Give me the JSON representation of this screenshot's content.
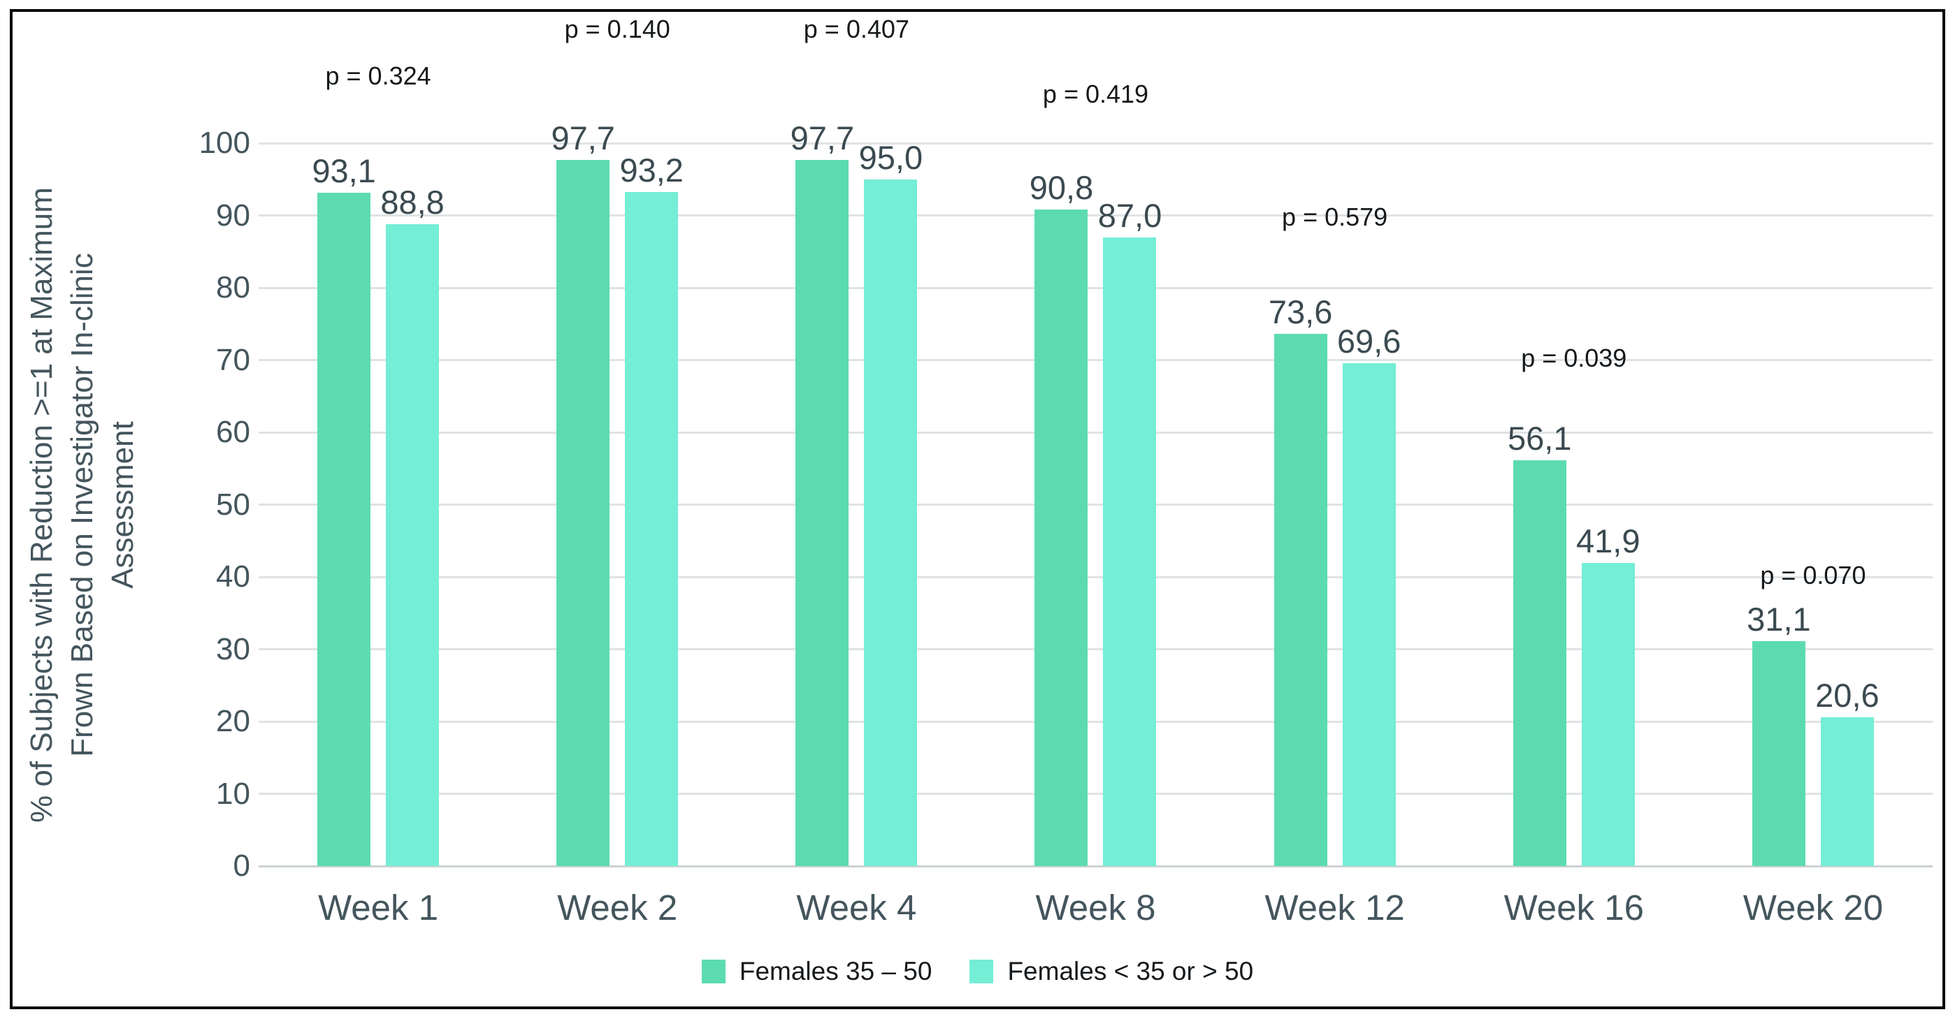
{
  "figure": {
    "background": "#ffffff",
    "border_color": "#0a0a0a"
  },
  "chart_data": {
    "type": "bar",
    "title": "",
    "ylabel_lines": [
      "% of Subjects with Reduction >=1 at Maximum",
      "Frown Based on Investigator In-clinic",
      "Assessment"
    ],
    "xlabel": "",
    "ylim": [
      0,
      100
    ],
    "grid": true,
    "gridline_color": "#dfe3e5",
    "y_ticks": [
      "0",
      "10",
      "20",
      "30",
      "40",
      "50",
      "60",
      "70",
      "80",
      "90",
      "100"
    ],
    "categories": [
      "Week 1",
      "Week 2",
      "Week 4",
      "Week 8",
      "Week 12",
      "Week 16",
      "Week 20"
    ],
    "series": [
      {
        "name": "Females 35 – 50",
        "color": "#5cdbb1",
        "values": [
          93.1,
          97.7,
          97.7,
          90.8,
          73.6,
          56.1,
          31.1
        ],
        "value_labels": [
          "93,1",
          "97,7",
          "97,7",
          "90,8",
          "73,6",
          "56,1",
          "31,1"
        ]
      },
      {
        "name": "Females < 35 or > 50",
        "color": "#74eed5",
        "values": [
          88.8,
          93.2,
          95.0,
          87.0,
          69.6,
          41.9,
          20.6
        ],
        "value_labels": [
          "88,8",
          "93,2",
          "95,0",
          "87,0",
          "69,6",
          "41,9",
          "20,6"
        ]
      }
    ],
    "p_values": [
      {
        "text": "p = 0.324",
        "y": 107.5
      },
      {
        "text": "p = 0.140",
        "y": 114
      },
      {
        "text": "p = 0.407",
        "y": 114
      },
      {
        "text": "p = 0.419",
        "y": 105
      },
      {
        "text": "p = 0.579",
        "y": 88
      },
      {
        "text": "p = 0.039",
        "y": 68.5
      },
      {
        "text": "p = 0.070",
        "y": 38.5
      }
    ],
    "legend_position": "bottom"
  }
}
